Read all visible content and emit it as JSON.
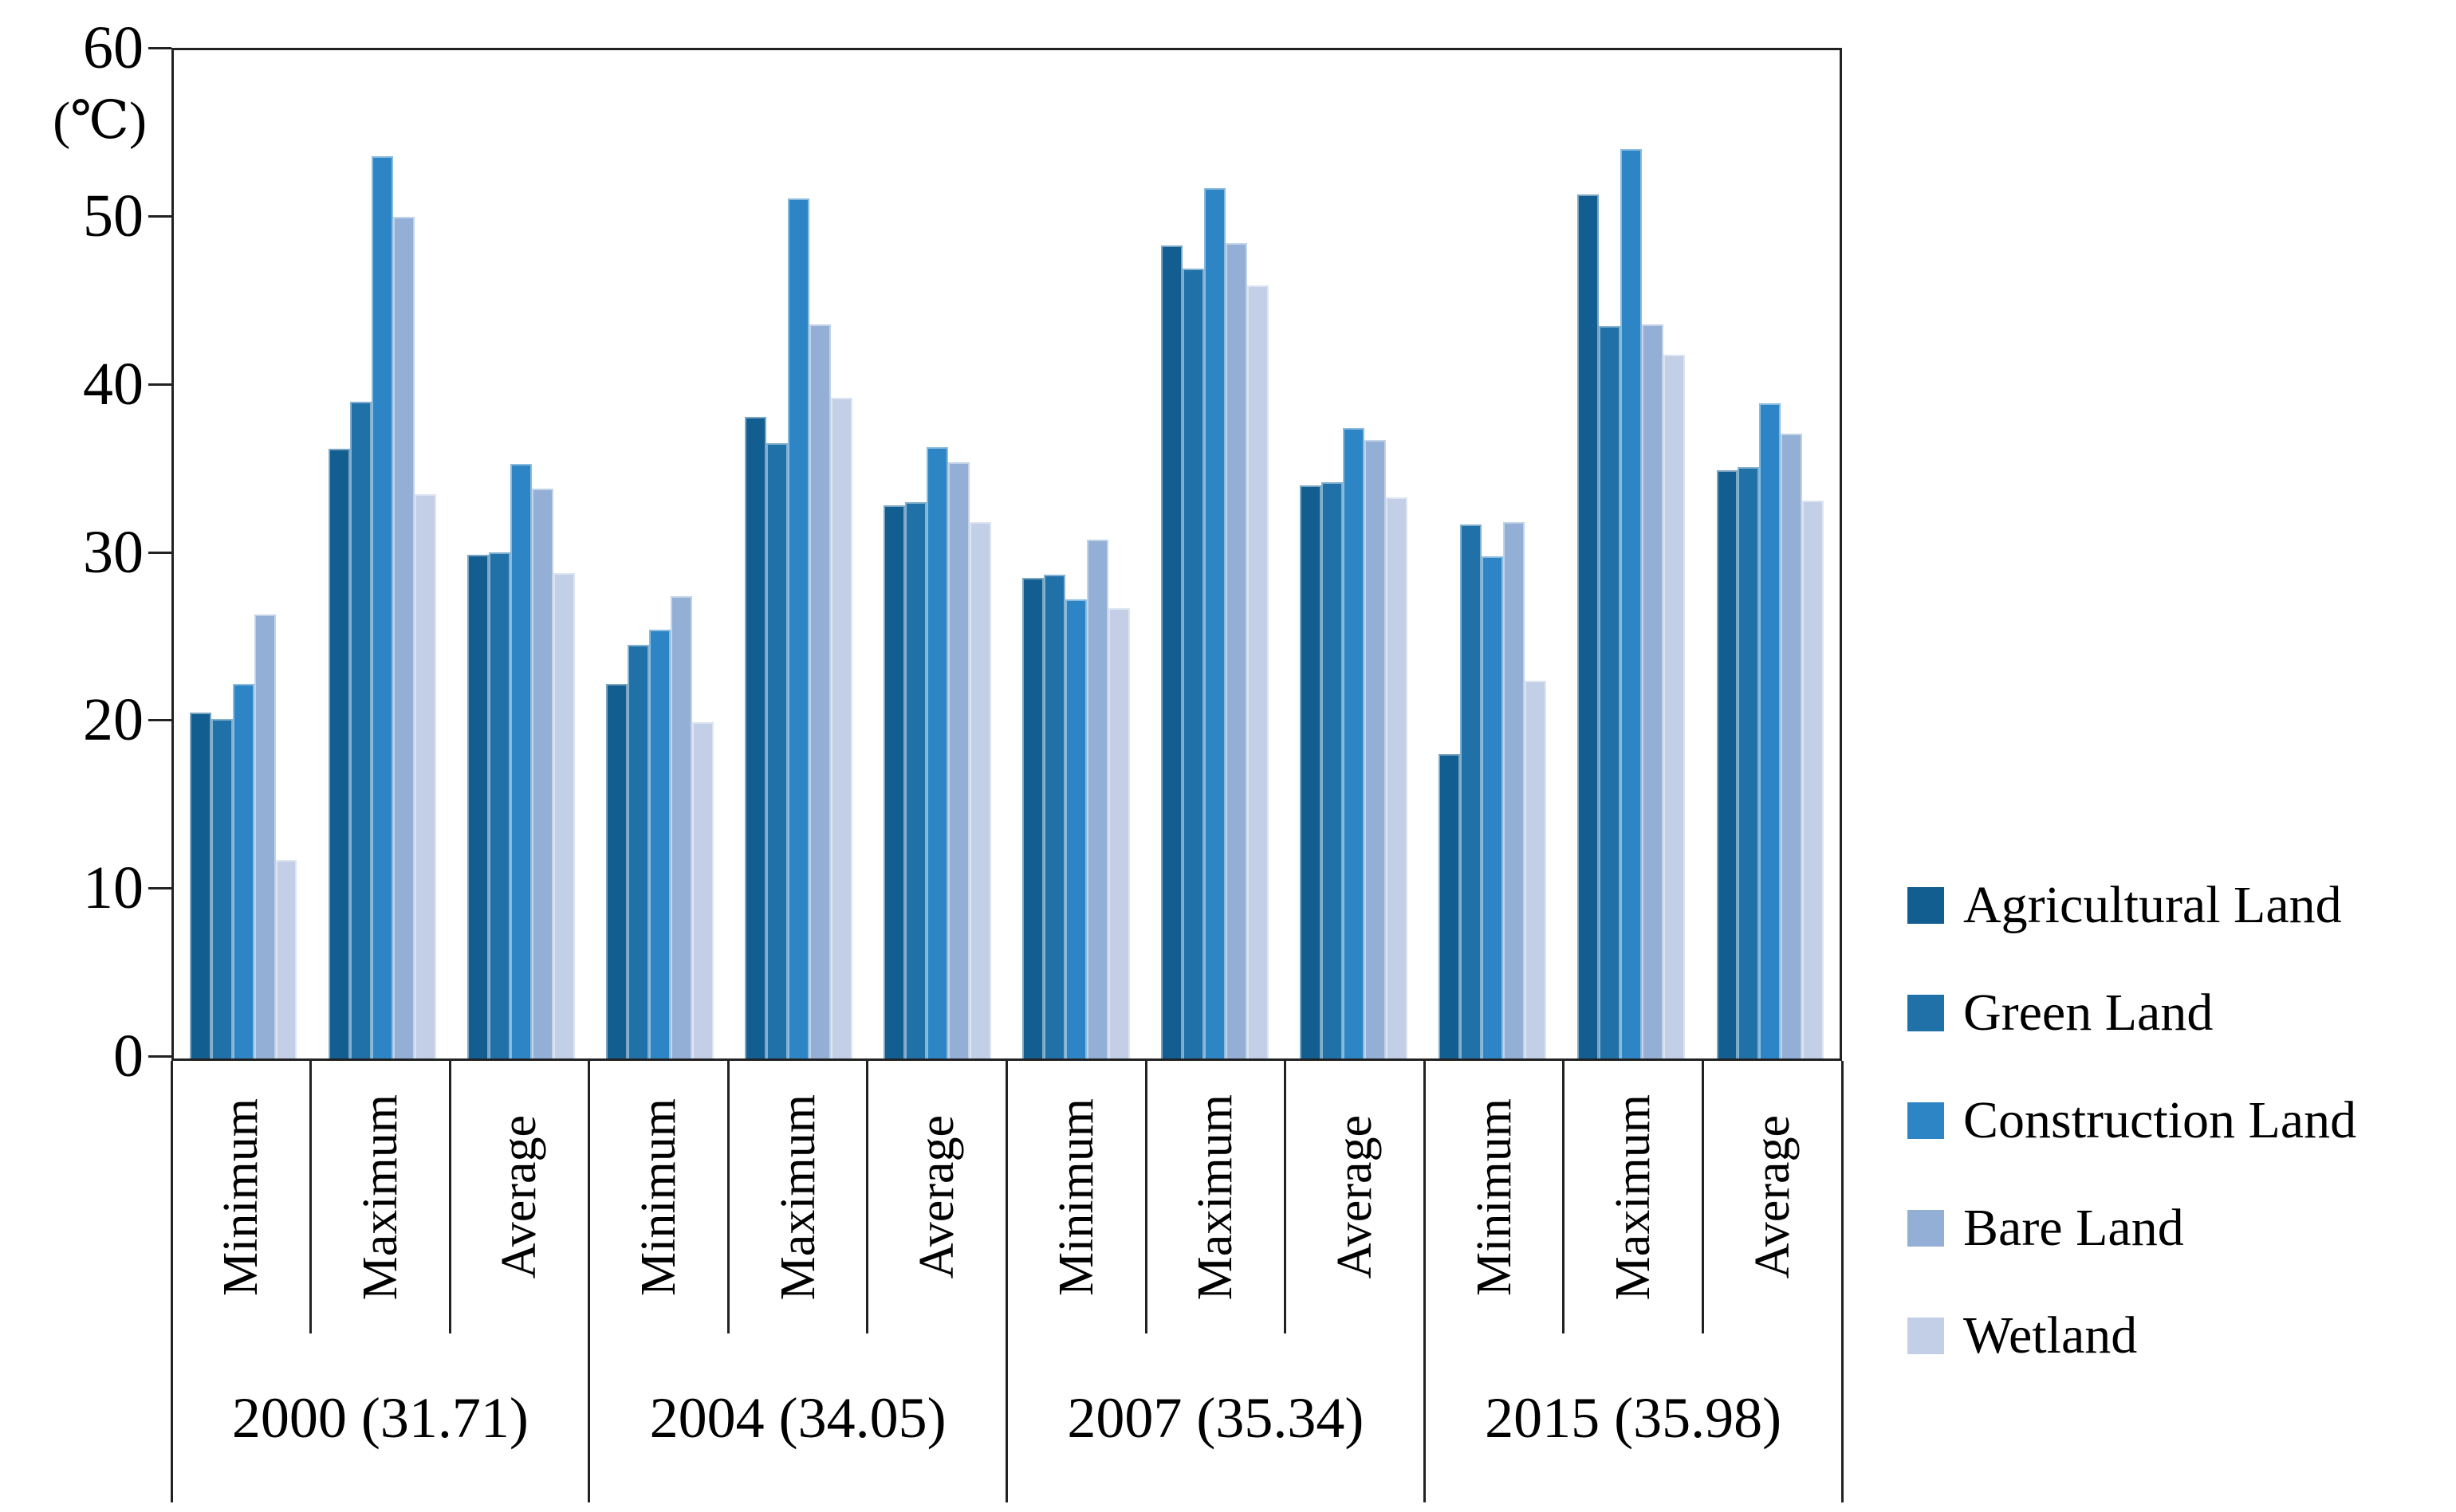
{
  "chart_data": {
    "type": "bar",
    "title": "",
    "unit_label": "(℃)",
    "ylim": [
      0,
      60
    ],
    "y_ticks": [
      60,
      50,
      40,
      30,
      20,
      10,
      0
    ],
    "grid": false,
    "legend_position": "right",
    "stats": [
      "Minimum",
      "Maximum",
      "Average"
    ],
    "groups": [
      "2000 (31.71)",
      "2004 (34.05)",
      "2007 (35.34)",
      "2015 (35.98)"
    ],
    "columns": [
      "2000 Minimum",
      "2000 Maximum",
      "2000 Average",
      "2004 Minimum",
      "2004 Maximum",
      "2004 Average",
      "2007 Minimum",
      "2007 Maximum",
      "2007 Average",
      "2015 Minimum",
      "2015 Maximum",
      "2015 Average"
    ],
    "series": [
      {
        "name": "Agricultural Land",
        "color": "#135E91",
        "values": [
          20.6,
          36.3,
          30.0,
          22.3,
          38.2,
          32.9,
          28.6,
          48.4,
          34.1,
          18.1,
          51.4,
          35.0
        ]
      },
      {
        "name": "Green Land",
        "color": "#2171A9",
        "values": [
          20.2,
          39.1,
          30.1,
          24.6,
          36.6,
          33.1,
          28.8,
          47.0,
          34.3,
          31.8,
          43.6,
          35.2
        ]
      },
      {
        "name": "Construction Land",
        "color": "#2D85C5",
        "values": [
          22.3,
          53.7,
          35.4,
          25.5,
          51.2,
          36.4,
          27.3,
          51.8,
          37.5,
          29.9,
          54.1,
          39.0
        ]
      },
      {
        "name": "Bare Land",
        "color": "#93AFD6",
        "values": [
          26.4,
          50.1,
          33.9,
          27.5,
          43.7,
          35.5,
          30.9,
          48.5,
          36.8,
          31.9,
          43.7,
          37.2
        ]
      },
      {
        "name": "Wetland",
        "color": "#C2CFE6",
        "values": [
          11.8,
          33.6,
          28.9,
          20.0,
          39.3,
          31.9,
          26.8,
          46.0,
          33.4,
          22.5,
          41.9,
          33.2
        ]
      }
    ]
  }
}
